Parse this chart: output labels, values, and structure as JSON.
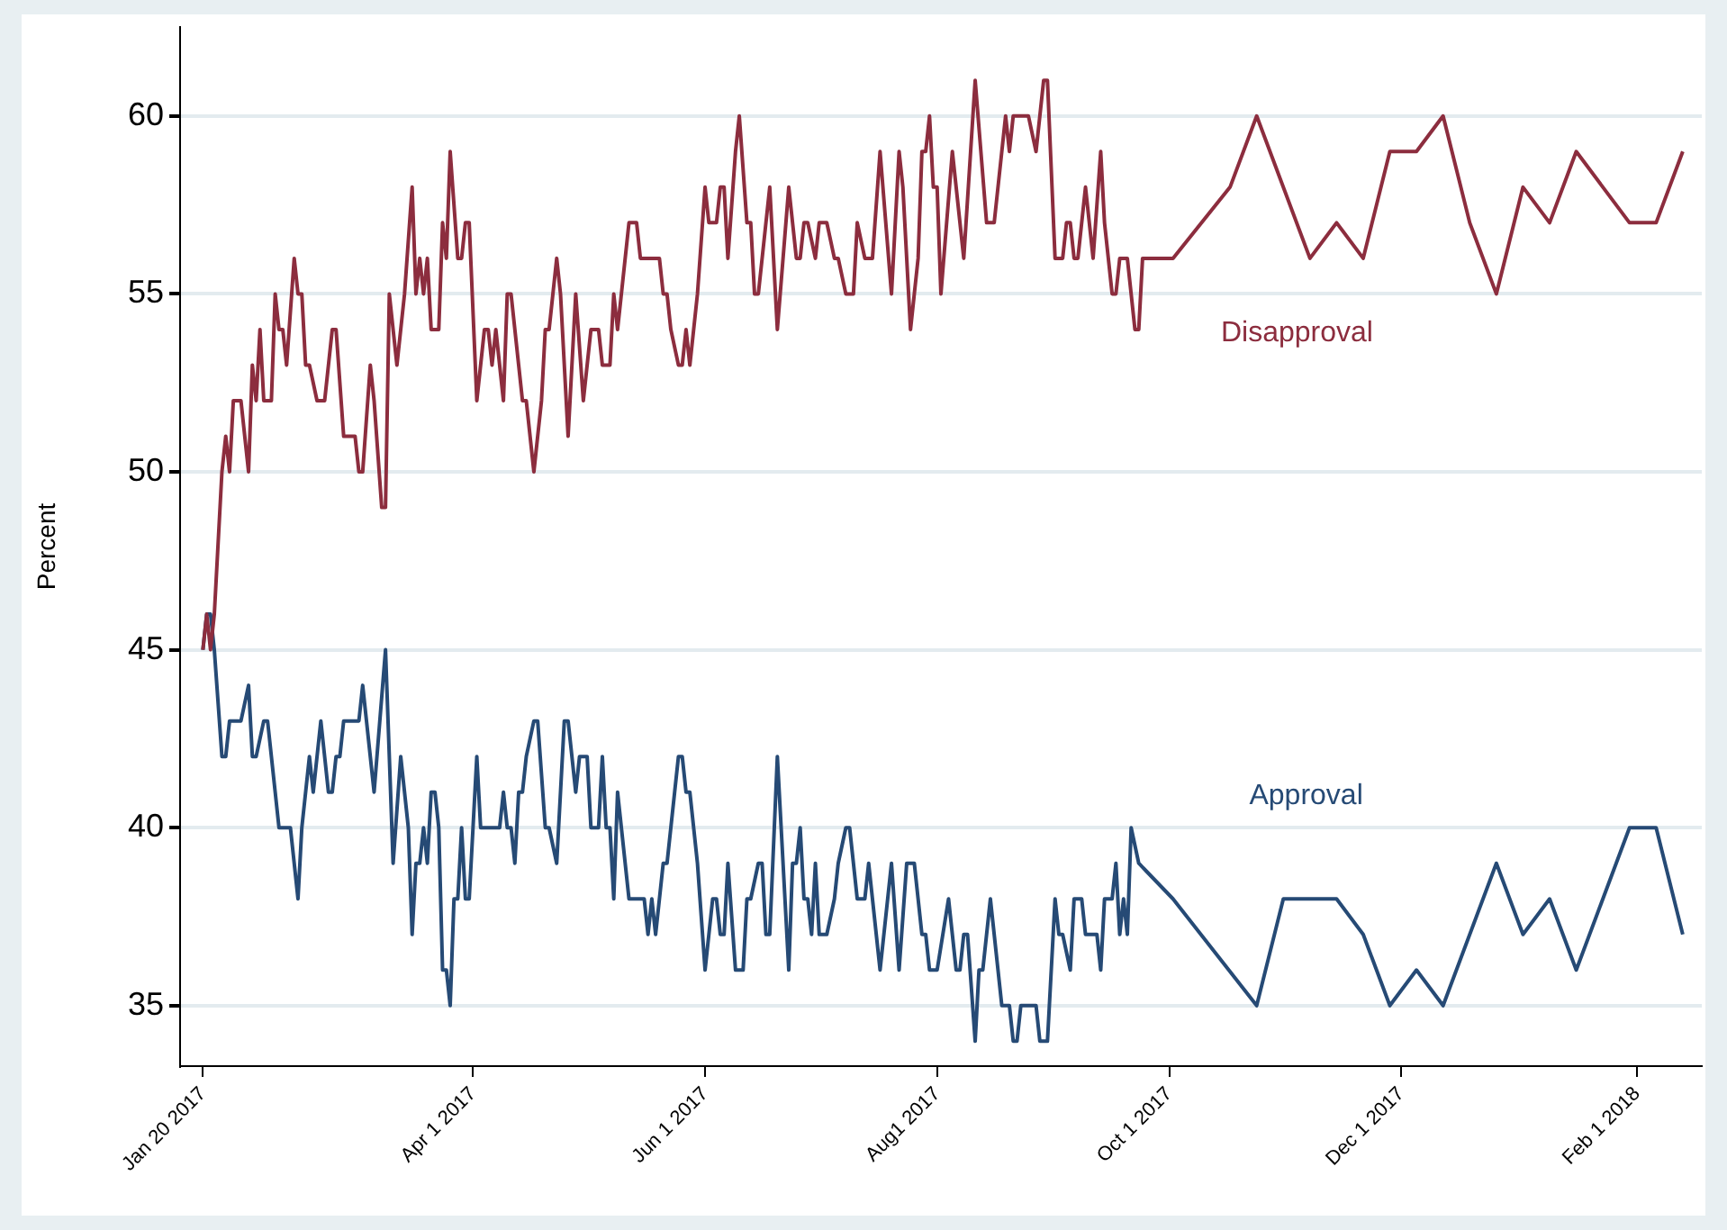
{
  "chart_data": {
    "type": "line",
    "ylabel": "Percent",
    "xlim": [
      "2017-01-14",
      "2018-02-18"
    ],
    "ylim": [
      33.3,
      62.5
    ],
    "xticks": [
      {
        "value": "2017-01-20",
        "label": "Jan 20 2017"
      },
      {
        "value": "2017-04-01",
        "label": "Apr 1 2017"
      },
      {
        "value": "2017-06-01",
        "label": "Jun 1 2017"
      },
      {
        "value": "2017-08-01",
        "label": "Aug1 2017"
      },
      {
        "value": "2017-10-01",
        "label": "Oct 1 2017"
      },
      {
        "value": "2017-12-01",
        "label": "Dec 1 2017"
      },
      {
        "value": "2018-02-01",
        "label": "Feb 1 2018"
      }
    ],
    "yticks": [
      35,
      40,
      45,
      50,
      55,
      60
    ],
    "grid": "y",
    "marker": "none",
    "line_style": "solid",
    "series": [
      {
        "name": "Disapproval",
        "color": "#8c2d3e",
        "x": [
          "2017-01-20",
          "2017-01-21",
          "2017-01-22",
          "2017-01-23",
          "2017-01-25",
          "2017-01-26",
          "2017-01-27",
          "2017-01-28",
          "2017-01-30",
          "2017-02-01",
          "2017-02-02",
          "2017-02-03",
          "2017-02-04",
          "2017-02-05",
          "2017-02-07",
          "2017-02-08",
          "2017-02-09",
          "2017-02-10",
          "2017-02-11",
          "2017-02-13",
          "2017-02-14",
          "2017-02-15",
          "2017-02-16",
          "2017-02-17",
          "2017-02-19",
          "2017-02-21",
          "2017-02-23",
          "2017-02-24",
          "2017-02-26",
          "2017-03-01",
          "2017-03-02",
          "2017-03-03",
          "2017-03-05",
          "2017-03-06",
          "2017-03-08",
          "2017-03-09",
          "2017-03-10",
          "2017-03-12",
          "2017-03-14",
          "2017-03-16",
          "2017-03-17",
          "2017-03-18",
          "2017-03-19",
          "2017-03-20",
          "2017-03-21",
          "2017-03-23",
          "2017-03-24",
          "2017-03-25",
          "2017-03-26",
          "2017-03-28",
          "2017-03-29",
          "2017-03-30",
          "2017-03-31",
          "2017-04-02",
          "2017-04-04",
          "2017-04-05",
          "2017-04-06",
          "2017-04-07",
          "2017-04-09",
          "2017-04-10",
          "2017-04-11",
          "2017-04-13",
          "2017-04-14",
          "2017-04-15",
          "2017-04-17",
          "2017-04-19",
          "2017-04-20",
          "2017-04-21",
          "2017-04-23",
          "2017-04-24",
          "2017-04-26",
          "2017-04-28",
          "2017-04-30",
          "2017-05-02",
          "2017-05-04",
          "2017-05-05",
          "2017-05-07",
          "2017-05-08",
          "2017-05-09",
          "2017-05-12",
          "2017-05-14",
          "2017-05-15",
          "2017-05-20",
          "2017-05-21",
          "2017-05-22",
          "2017-05-23",
          "2017-05-25",
          "2017-05-26",
          "2017-05-27",
          "2017-05-28",
          "2017-05-30",
          "2017-06-01",
          "2017-06-02",
          "2017-06-04",
          "2017-06-05",
          "2017-06-06",
          "2017-06-07",
          "2017-06-09",
          "2017-06-10",
          "2017-06-12",
          "2017-06-13",
          "2017-06-14",
          "2017-06-15",
          "2017-06-18",
          "2017-06-20",
          "2017-06-23",
          "2017-06-25",
          "2017-06-26",
          "2017-06-27",
          "2017-06-28",
          "2017-06-30",
          "2017-07-01",
          "2017-07-03",
          "2017-07-05",
          "2017-07-06",
          "2017-07-08",
          "2017-07-10",
          "2017-07-11",
          "2017-07-13",
          "2017-07-15",
          "2017-07-17",
          "2017-07-20",
          "2017-07-22",
          "2017-07-23",
          "2017-07-25",
          "2017-07-27",
          "2017-07-28",
          "2017-07-29",
          "2017-07-30",
          "2017-07-31",
          "2017-08-01",
          "2017-08-02",
          "2017-08-05",
          "2017-08-08",
          "2017-08-11",
          "2017-08-14",
          "2017-08-16",
          "2017-08-19",
          "2017-08-20",
          "2017-08-21",
          "2017-08-25",
          "2017-08-27",
          "2017-08-29",
          "2017-08-30",
          "2017-09-01",
          "2017-09-03",
          "2017-09-04",
          "2017-09-05",
          "2017-09-06",
          "2017-09-07",
          "2017-09-09",
          "2017-09-11",
          "2017-09-13",
          "2017-09-14",
          "2017-09-16",
          "2017-09-17",
          "2017-09-18",
          "2017-09-20",
          "2017-09-22",
          "2017-09-23",
          "2017-09-24",
          "2017-10-02",
          "2017-10-17",
          "2017-10-24",
          "2017-11-07",
          "2017-11-14",
          "2017-11-21",
          "2017-11-28",
          "2017-12-05",
          "2017-12-12",
          "2017-12-19",
          "2017-12-26",
          "2018-01-02",
          "2018-01-09",
          "2018-01-16",
          "2018-01-23",
          "2018-01-30",
          "2018-02-06",
          "2018-02-13"
        ],
        "values": [
          45,
          46,
          45,
          46,
          50,
          51,
          50,
          52,
          52,
          50,
          53,
          52,
          54,
          52,
          52,
          55,
          54,
          54,
          53,
          56,
          55,
          55,
          53,
          53,
          52,
          52,
          54,
          54,
          51,
          51,
          50,
          50,
          53,
          52,
          49,
          49,
          55,
          53,
          55,
          58,
          55,
          56,
          55,
          56,
          54,
          54,
          57,
          56,
          59,
          56,
          56,
          57,
          57,
          52,
          54,
          54,
          53,
          54,
          52,
          55,
          55,
          53,
          52,
          52,
          50,
          52,
          54,
          54,
          56,
          55,
          51,
          55,
          52,
          54,
          54,
          53,
          53,
          55,
          54,
          57,
          57,
          56,
          56,
          55,
          55,
          54,
          53,
          53,
          54,
          53,
          55,
          58,
          57,
          57,
          58,
          58,
          56,
          59,
          60,
          57,
          57,
          55,
          55,
          58,
          54,
          58,
          56,
          56,
          57,
          57,
          56,
          57,
          57,
          56,
          56,
          55,
          55,
          57,
          56,
          56,
          59,
          55,
          59,
          58,
          54,
          56,
          59,
          59,
          60,
          58,
          58,
          55,
          59,
          56,
          61,
          57,
          57,
          60,
          59,
          60,
          60,
          59,
          61,
          61,
          56,
          56,
          57,
          57,
          56,
          56,
          58,
          56,
          59,
          57,
          55,
          55,
          56,
          56,
          54,
          54,
          56,
          56,
          58,
          60,
          56,
          57,
          56,
          59,
          59,
          60,
          57,
          55,
          58,
          57,
          59,
          58,
          57,
          57,
          59
        ]
      },
      {
        "name": "Approval",
        "color": "#264a75",
        "x": [
          "2017-01-20",
          "2017-01-21",
          "2017-01-22",
          "2017-01-23",
          "2017-01-25",
          "2017-01-26",
          "2017-01-27",
          "2017-01-30",
          "2017-02-01",
          "2017-02-02",
          "2017-02-03",
          "2017-02-05",
          "2017-02-06",
          "2017-02-09",
          "2017-02-12",
          "2017-02-14",
          "2017-02-15",
          "2017-02-17",
          "2017-02-18",
          "2017-02-20",
          "2017-02-22",
          "2017-02-23",
          "2017-02-24",
          "2017-02-25",
          "2017-02-26",
          "2017-03-02",
          "2017-03-03",
          "2017-03-06",
          "2017-03-09",
          "2017-03-11",
          "2017-03-13",
          "2017-03-15",
          "2017-03-16",
          "2017-03-17",
          "2017-03-18",
          "2017-03-19",
          "2017-03-20",
          "2017-03-21",
          "2017-03-22",
          "2017-03-23",
          "2017-03-24",
          "2017-03-25",
          "2017-03-26",
          "2017-03-27",
          "2017-03-28",
          "2017-03-29",
          "2017-03-30",
          "2017-03-31",
          "2017-04-02",
          "2017-04-03",
          "2017-04-08",
          "2017-04-09",
          "2017-04-10",
          "2017-04-11",
          "2017-04-12",
          "2017-04-13",
          "2017-04-14",
          "2017-04-15",
          "2017-04-17",
          "2017-04-18",
          "2017-04-20",
          "2017-04-21",
          "2017-04-23",
          "2017-04-25",
          "2017-04-26",
          "2017-04-28",
          "2017-04-29",
          "2017-05-01",
          "2017-05-02",
          "2017-05-04",
          "2017-05-05",
          "2017-05-06",
          "2017-05-07",
          "2017-05-08",
          "2017-05-09",
          "2017-05-12",
          "2017-05-16",
          "2017-05-17",
          "2017-05-18",
          "2017-05-19",
          "2017-05-21",
          "2017-05-22",
          "2017-05-24",
          "2017-05-25",
          "2017-05-26",
          "2017-05-27",
          "2017-05-28",
          "2017-05-30",
          "2017-06-01",
          "2017-06-03",
          "2017-06-04",
          "2017-06-05",
          "2017-06-06",
          "2017-06-07",
          "2017-06-09",
          "2017-06-11",
          "2017-06-12",
          "2017-06-13",
          "2017-06-15",
          "2017-06-16",
          "2017-06-17",
          "2017-06-18",
          "2017-06-20",
          "2017-06-23",
          "2017-06-24",
          "2017-06-25",
          "2017-06-26",
          "2017-06-27",
          "2017-06-28",
          "2017-06-29",
          "2017-06-30",
          "2017-07-01",
          "2017-07-03",
          "2017-07-05",
          "2017-07-06",
          "2017-07-08",
          "2017-07-09",
          "2017-07-11",
          "2017-07-13",
          "2017-07-14",
          "2017-07-17",
          "2017-07-20",
          "2017-07-22",
          "2017-07-24",
          "2017-07-26",
          "2017-07-28",
          "2017-07-29",
          "2017-07-30",
          "2017-08-01",
          "2017-08-04",
          "2017-08-06",
          "2017-08-07",
          "2017-08-08",
          "2017-08-09",
          "2017-08-11",
          "2017-08-12",
          "2017-08-13",
          "2017-08-15",
          "2017-08-18",
          "2017-08-20",
          "2017-08-21",
          "2017-08-22",
          "2017-08-23",
          "2017-08-27",
          "2017-08-28",
          "2017-08-30",
          "2017-09-01",
          "2017-09-02",
          "2017-09-03",
          "2017-09-05",
          "2017-09-06",
          "2017-09-08",
          "2017-09-09",
          "2017-09-12",
          "2017-09-13",
          "2017-09-14",
          "2017-09-16",
          "2017-09-17",
          "2017-09-18",
          "2017-09-19",
          "2017-09-20",
          "2017-09-21",
          "2017-09-23",
          "2017-10-02",
          "2017-10-24",
          "2017-10-31",
          "2017-11-14",
          "2017-11-21",
          "2017-11-28",
          "2017-12-05",
          "2017-12-12",
          "2017-12-26",
          "2018-01-02",
          "2018-01-09",
          "2018-01-16",
          "2018-01-23",
          "2018-01-30",
          "2018-02-06",
          "2018-02-13"
        ],
        "values": [
          45,
          46,
          46,
          45,
          42,
          42,
          43,
          43,
          44,
          42,
          42,
          43,
          43,
          40,
          40,
          38,
          40,
          42,
          41,
          43,
          41,
          41,
          42,
          42,
          43,
          43,
          44,
          41,
          45,
          39,
          42,
          40,
          37,
          39,
          39,
          40,
          39,
          41,
          41,
          40,
          36,
          36,
          35,
          38,
          38,
          40,
          38,
          38,
          42,
          40,
          40,
          41,
          40,
          40,
          39,
          41,
          41,
          42,
          43,
          43,
          40,
          40,
          39,
          43,
          43,
          41,
          42,
          42,
          40,
          40,
          42,
          40,
          40,
          38,
          41,
          38,
          38,
          37,
          38,
          37,
          39,
          39,
          41,
          42,
          42,
          41,
          41,
          39,
          36,
          38,
          38,
          37,
          37,
          39,
          36,
          36,
          38,
          38,
          39,
          39,
          37,
          37,
          42,
          36,
          39,
          39,
          40,
          38,
          38,
          37,
          39,
          37,
          37,
          38,
          39,
          40,
          40,
          38,
          38,
          39,
          36,
          39,
          36,
          39,
          39,
          37,
          37,
          36,
          36,
          38,
          36,
          36,
          37,
          37,
          34,
          36,
          36,
          38,
          35,
          35,
          34,
          34,
          35,
          35,
          34,
          34,
          38,
          37,
          37,
          36,
          38,
          38,
          37,
          37,
          36,
          38,
          38,
          39,
          37,
          38,
          37,
          40,
          39,
          38,
          35,
          38,
          38,
          37,
          35,
          36,
          35,
          39,
          37,
          38,
          36,
          38,
          40,
          40,
          37
        ]
      }
    ]
  }
}
